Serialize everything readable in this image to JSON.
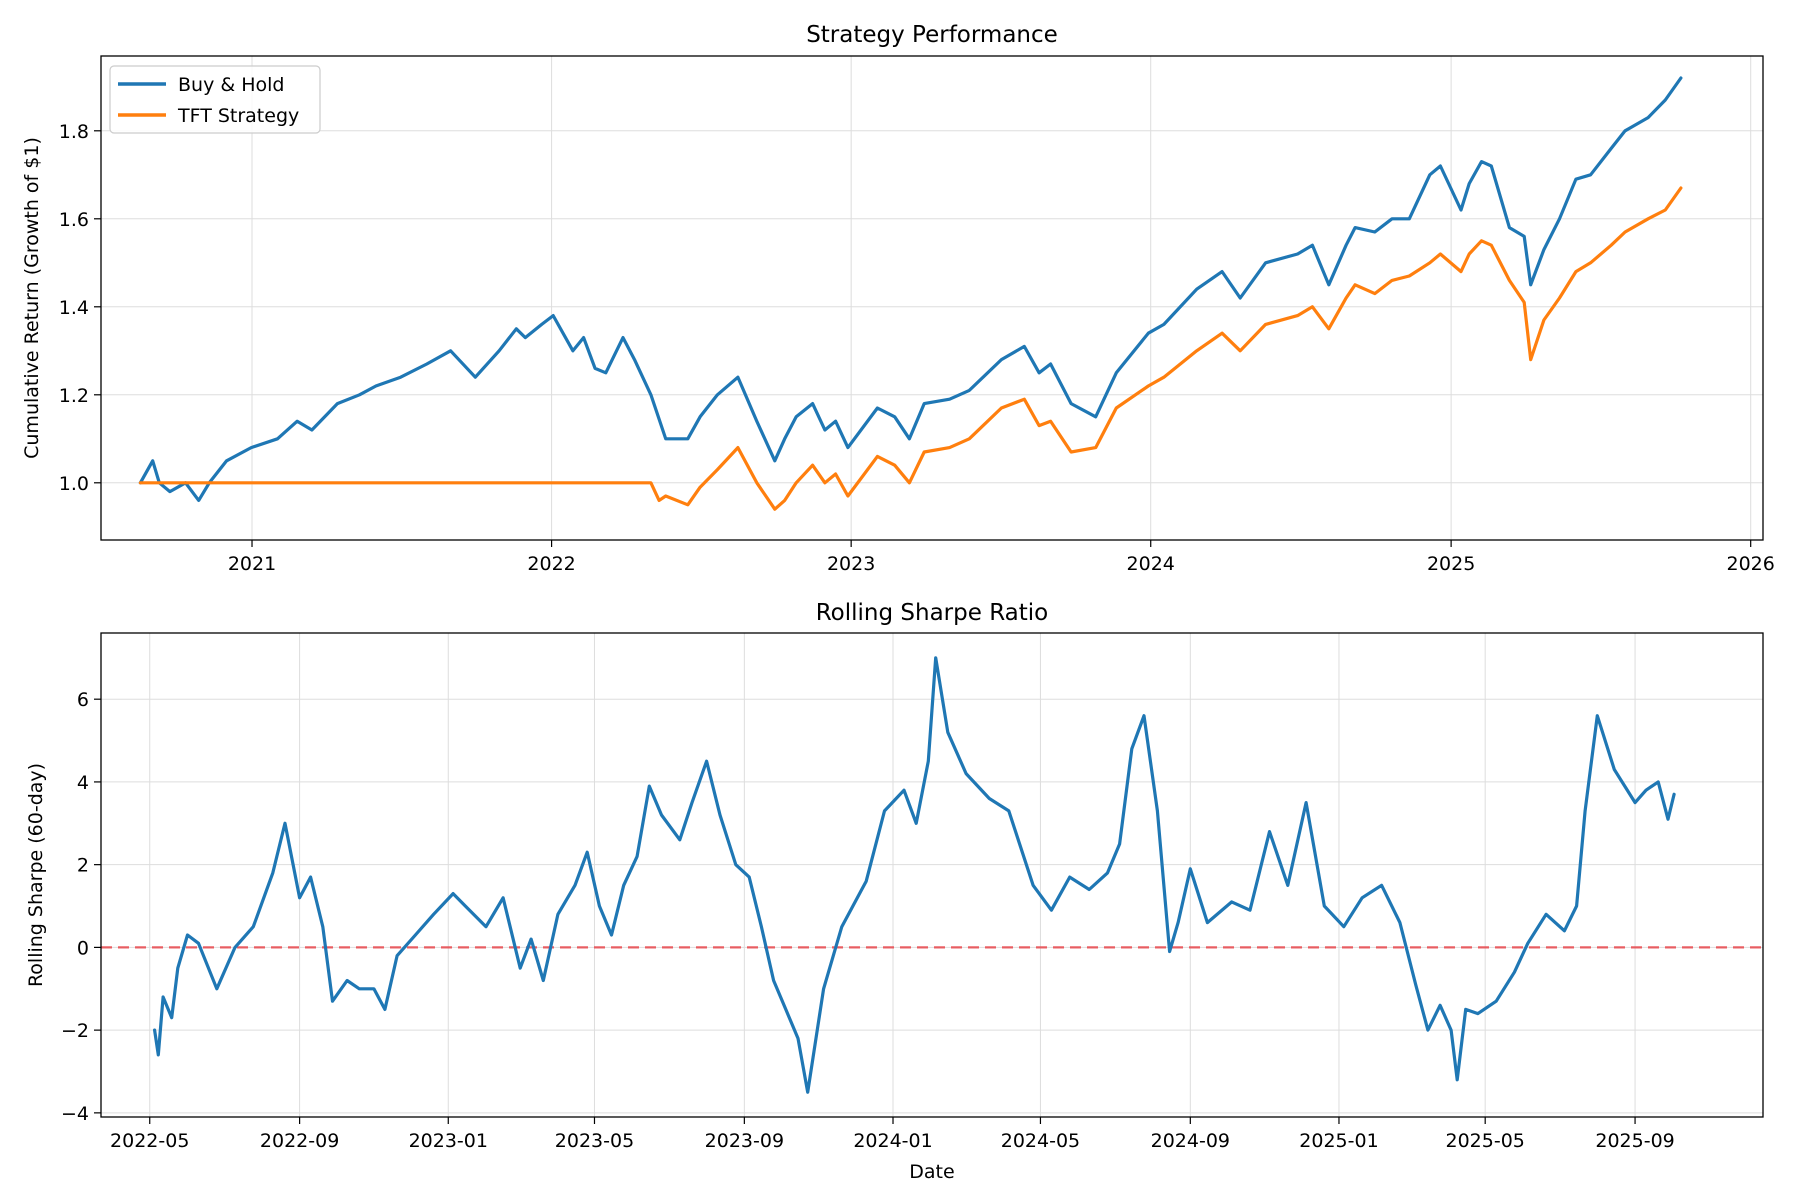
{
  "colors": {
    "blue": "#1f77b4",
    "orange": "#ff7f0e",
    "zero_line": "#e8474c",
    "grid": "#dddddd"
  },
  "chart_data": [
    {
      "type": "line",
      "title": "Strategy Performance",
      "xlabel": "",
      "ylabel": "Cumulative Return (Growth of $1)",
      "xlim": [
        "2020-07-01",
        "2026-01-16"
      ],
      "ylim": [
        0.87,
        1.97
      ],
      "xticks": [
        "2021-01-01",
        "2022-01-01",
        "2023-01-01",
        "2024-01-01",
        "2025-01-01",
        "2026-01-01"
      ],
      "xtick_labels": [
        "2021",
        "2022",
        "2023",
        "2024",
        "2025",
        "2026"
      ],
      "yticks": [
        1.0,
        1.2,
        1.4,
        1.6,
        1.8
      ],
      "ytick_labels": [
        "1.0",
        "1.2",
        "1.4",
        "1.6",
        "1.8"
      ],
      "grid": true,
      "legend_position": "upper-left",
      "series": [
        {
          "name": "Buy & Hold",
          "color": "#1f77b4",
          "x": [
            "2020-08-18",
            "2020-09-02",
            "2020-09-10",
            "2020-09-23",
            "2020-10-12",
            "2020-10-28",
            "2020-11-10",
            "2020-12-01",
            "2020-12-31",
            "2021-02-01",
            "2021-02-25",
            "2021-03-15",
            "2021-04-15",
            "2021-05-12",
            "2021-06-01",
            "2021-07-01",
            "2021-08-02",
            "2021-08-31",
            "2021-09-30",
            "2021-10-29",
            "2021-11-19",
            "2021-11-30",
            "2021-12-20",
            "2022-01-03",
            "2022-01-27",
            "2022-02-09",
            "2022-02-23",
            "2022-03-08",
            "2022-03-29",
            "2022-04-12",
            "2022-05-02",
            "2022-05-20",
            "2022-06-16",
            "2022-07-01",
            "2022-07-22",
            "2022-08-16",
            "2022-09-08",
            "2022-09-30",
            "2022-10-12",
            "2022-10-26",
            "2022-11-15",
            "2022-11-30",
            "2022-12-13",
            "2022-12-28",
            "2023-02-02",
            "2023-02-23",
            "2023-03-13",
            "2023-03-31",
            "2023-05-01",
            "2023-05-25",
            "2023-07-03",
            "2023-07-31",
            "2023-08-18",
            "2023-09-01",
            "2023-09-26",
            "2023-10-26",
            "2023-11-20",
            "2023-12-29",
            "2024-01-17",
            "2024-02-26",
            "2024-03-28",
            "2024-04-19",
            "2024-05-20",
            "2024-06-28",
            "2024-07-16",
            "2024-08-05",
            "2024-08-26",
            "2024-09-06",
            "2024-09-30",
            "2024-10-21",
            "2024-11-11",
            "2024-12-06",
            "2024-12-19",
            "2025-01-13",
            "2025-01-23",
            "2025-02-07",
            "2025-02-19",
            "2025-03-13",
            "2025-03-31",
            "2025-04-08",
            "2025-04-24",
            "2025-05-13",
            "2025-06-02",
            "2025-06-20",
            "2025-07-15",
            "2025-08-01",
            "2025-08-29",
            "2025-09-19",
            "2025-10-08"
          ],
          "y": [
            1.0,
            1.05,
            1.0,
            0.98,
            1.0,
            0.96,
            1.0,
            1.05,
            1.08,
            1.1,
            1.14,
            1.12,
            1.18,
            1.2,
            1.22,
            1.24,
            1.27,
            1.3,
            1.24,
            1.3,
            1.35,
            1.33,
            1.36,
            1.38,
            1.3,
            1.33,
            1.26,
            1.25,
            1.33,
            1.28,
            1.2,
            1.1,
            1.1,
            1.15,
            1.2,
            1.24,
            1.14,
            1.05,
            1.1,
            1.15,
            1.18,
            1.12,
            1.14,
            1.08,
            1.17,
            1.15,
            1.1,
            1.18,
            1.19,
            1.21,
            1.28,
            1.31,
            1.25,
            1.27,
            1.18,
            1.15,
            1.25,
            1.34,
            1.36,
            1.44,
            1.48,
            1.42,
            1.5,
            1.52,
            1.54,
            1.45,
            1.54,
            1.58,
            1.57,
            1.6,
            1.6,
            1.7,
            1.72,
            1.62,
            1.68,
            1.73,
            1.72,
            1.58,
            1.56,
            1.45,
            1.53,
            1.6,
            1.69,
            1.7,
            1.76,
            1.8,
            1.83,
            1.87,
            1.92
          ]
        },
        {
          "name": "TFT Strategy",
          "color": "#ff7f0e",
          "x": [
            "2020-08-18",
            "2022-05-02",
            "2022-05-12",
            "2022-05-20",
            "2022-06-16",
            "2022-07-01",
            "2022-07-22",
            "2022-08-16",
            "2022-09-08",
            "2022-09-30",
            "2022-10-12",
            "2022-10-26",
            "2022-11-15",
            "2022-11-30",
            "2022-12-13",
            "2022-12-28",
            "2023-02-02",
            "2023-02-23",
            "2023-03-13",
            "2023-03-31",
            "2023-05-01",
            "2023-05-25",
            "2023-07-03",
            "2023-07-31",
            "2023-08-18",
            "2023-09-01",
            "2023-09-26",
            "2023-10-26",
            "2023-11-20",
            "2023-12-29",
            "2024-01-17",
            "2024-02-26",
            "2024-03-28",
            "2024-04-19",
            "2024-05-20",
            "2024-06-28",
            "2024-07-16",
            "2024-08-05",
            "2024-08-26",
            "2024-09-06",
            "2024-09-30",
            "2024-10-21",
            "2024-11-11",
            "2024-12-06",
            "2024-12-19",
            "2025-01-13",
            "2025-01-23",
            "2025-02-07",
            "2025-02-19",
            "2025-03-13",
            "2025-03-31",
            "2025-04-08",
            "2025-04-24",
            "2025-05-13",
            "2025-06-02",
            "2025-06-20",
            "2025-07-15",
            "2025-08-01",
            "2025-08-29",
            "2025-09-19",
            "2025-10-08"
          ],
          "y": [
            1.0,
            1.0,
            0.96,
            0.97,
            0.95,
            0.99,
            1.03,
            1.08,
            1.0,
            0.94,
            0.96,
            1.0,
            1.04,
            1.0,
            1.02,
            0.97,
            1.06,
            1.04,
            1.0,
            1.07,
            1.08,
            1.1,
            1.17,
            1.19,
            1.13,
            1.14,
            1.07,
            1.08,
            1.17,
            1.22,
            1.24,
            1.3,
            1.34,
            1.3,
            1.36,
            1.38,
            1.4,
            1.35,
            1.42,
            1.45,
            1.43,
            1.46,
            1.47,
            1.5,
            1.52,
            1.48,
            1.52,
            1.55,
            1.54,
            1.46,
            1.41,
            1.28,
            1.37,
            1.42,
            1.48,
            1.5,
            1.54,
            1.57,
            1.6,
            1.62,
            1.67
          ]
        }
      ]
    },
    {
      "type": "line",
      "title": "Rolling Sharpe Ratio",
      "xlabel": "Date",
      "ylabel": "Rolling Sharpe (60-day)",
      "xlim": [
        "2022-03-22",
        "2025-12-15"
      ],
      "ylim": [
        -4.1,
        7.6
      ],
      "xticks": [
        "2022-05-01",
        "2022-09-01",
        "2023-01-01",
        "2023-05-01",
        "2023-09-01",
        "2024-01-01",
        "2024-05-01",
        "2024-09-01",
        "2025-01-01",
        "2025-05-01",
        "2025-09-01"
      ],
      "xtick_labels": [
        "2022-05",
        "2022-09",
        "2023-01",
        "2023-05",
        "2023-09",
        "2024-01",
        "2024-05",
        "2024-09",
        "2025-01",
        "2025-05",
        "2025-09"
      ],
      "yticks": [
        -4,
        -2,
        0,
        2,
        4,
        6
      ],
      "ytick_labels": [
        "−4",
        "−2",
        "0",
        "2",
        "4",
        "6"
      ],
      "grid": true,
      "reference_line": {
        "y": 0,
        "style": "dashed",
        "color": "#e8474c"
      },
      "series": [
        {
          "color": "#1f77b4",
          "x": [
            "2022-05-05",
            "2022-05-08",
            "2022-05-12",
            "2022-05-19",
            "2022-05-24",
            "2022-06-01",
            "2022-06-10",
            "2022-06-25",
            "2022-07-10",
            "2022-07-25",
            "2022-08-10",
            "2022-08-20",
            "2022-09-01",
            "2022-09-10",
            "2022-09-20",
            "2022-09-28",
            "2022-10-10",
            "2022-10-20",
            "2022-11-01",
            "2022-11-10",
            "2022-11-20",
            "2022-12-05",
            "2022-12-20",
            "2023-01-05",
            "2023-01-15",
            "2023-02-01",
            "2023-02-15",
            "2023-03-01",
            "2023-03-10",
            "2023-03-20",
            "2023-04-01",
            "2023-04-15",
            "2023-04-25",
            "2023-05-05",
            "2023-05-15",
            "2023-05-25",
            "2023-06-05",
            "2023-06-15",
            "2023-06-25",
            "2023-07-10",
            "2023-07-20",
            "2023-08-01",
            "2023-08-12",
            "2023-08-25",
            "2023-09-05",
            "2023-09-15",
            "2023-09-25",
            "2023-10-05",
            "2023-10-15",
            "2023-10-23",
            "2023-11-05",
            "2023-11-20",
            "2023-12-10",
            "2023-12-25",
            "2024-01-10",
            "2024-01-20",
            "2024-01-30",
            "2024-02-05",
            "2024-02-15",
            "2024-03-01",
            "2024-03-20",
            "2024-04-05",
            "2024-04-25",
            "2024-05-10",
            "2024-05-25",
            "2024-06-10",
            "2024-06-25",
            "2024-07-05",
            "2024-07-15",
            "2024-07-25",
            "2024-08-05",
            "2024-08-15",
            "2024-08-22",
            "2024-09-01",
            "2024-09-15",
            "2024-10-05",
            "2024-10-20",
            "2024-11-05",
            "2024-11-20",
            "2024-12-05",
            "2024-12-20",
            "2025-01-05",
            "2025-01-20",
            "2025-02-05",
            "2025-02-20",
            "2025-03-05",
            "2025-03-15",
            "2025-03-25",
            "2025-04-03",
            "2025-04-08",
            "2025-04-15",
            "2025-04-25",
            "2025-05-10",
            "2025-05-25",
            "2025-06-05",
            "2025-06-20",
            "2025-07-05",
            "2025-07-15",
            "2025-07-22",
            "2025-08-01",
            "2025-08-15",
            "2025-09-01",
            "2025-09-10",
            "2025-09-20",
            "2025-09-28",
            "2025-10-03"
          ],
          "y": [
            -2.0,
            -2.6,
            -1.2,
            -1.7,
            -0.5,
            0.3,
            0.1,
            -1.0,
            0.0,
            0.5,
            1.8,
            3.0,
            1.2,
            1.7,
            0.5,
            -1.3,
            -0.8,
            -1.0,
            -1.0,
            -1.5,
            -0.2,
            0.3,
            0.8,
            1.3,
            1.0,
            0.5,
            1.2,
            -0.5,
            0.2,
            -0.8,
            0.8,
            1.5,
            2.3,
            1.0,
            0.3,
            1.5,
            2.2,
            3.9,
            3.2,
            2.6,
            3.5,
            4.5,
            3.2,
            2.0,
            1.7,
            0.5,
            -0.8,
            -1.5,
            -2.2,
            -3.5,
            -1.0,
            0.5,
            1.6,
            3.3,
            3.8,
            3.0,
            4.5,
            7.0,
            5.2,
            4.2,
            3.6,
            3.3,
            1.5,
            0.9,
            1.7,
            1.4,
            1.8,
            2.5,
            4.8,
            5.6,
            3.3,
            -0.1,
            0.6,
            1.9,
            0.6,
            1.1,
            0.9,
            2.8,
            1.5,
            3.5,
            1.0,
            0.5,
            1.2,
            1.5,
            0.6,
            -0.9,
            -2.0,
            -1.4,
            -2.0,
            -3.2,
            -1.5,
            -1.6,
            -1.3,
            -0.6,
            0.1,
            0.8,
            0.4,
            1.0,
            3.3,
            5.6,
            4.3,
            3.5,
            3.8,
            4.0,
            3.1,
            3.7
          ]
        }
      ]
    }
  ]
}
